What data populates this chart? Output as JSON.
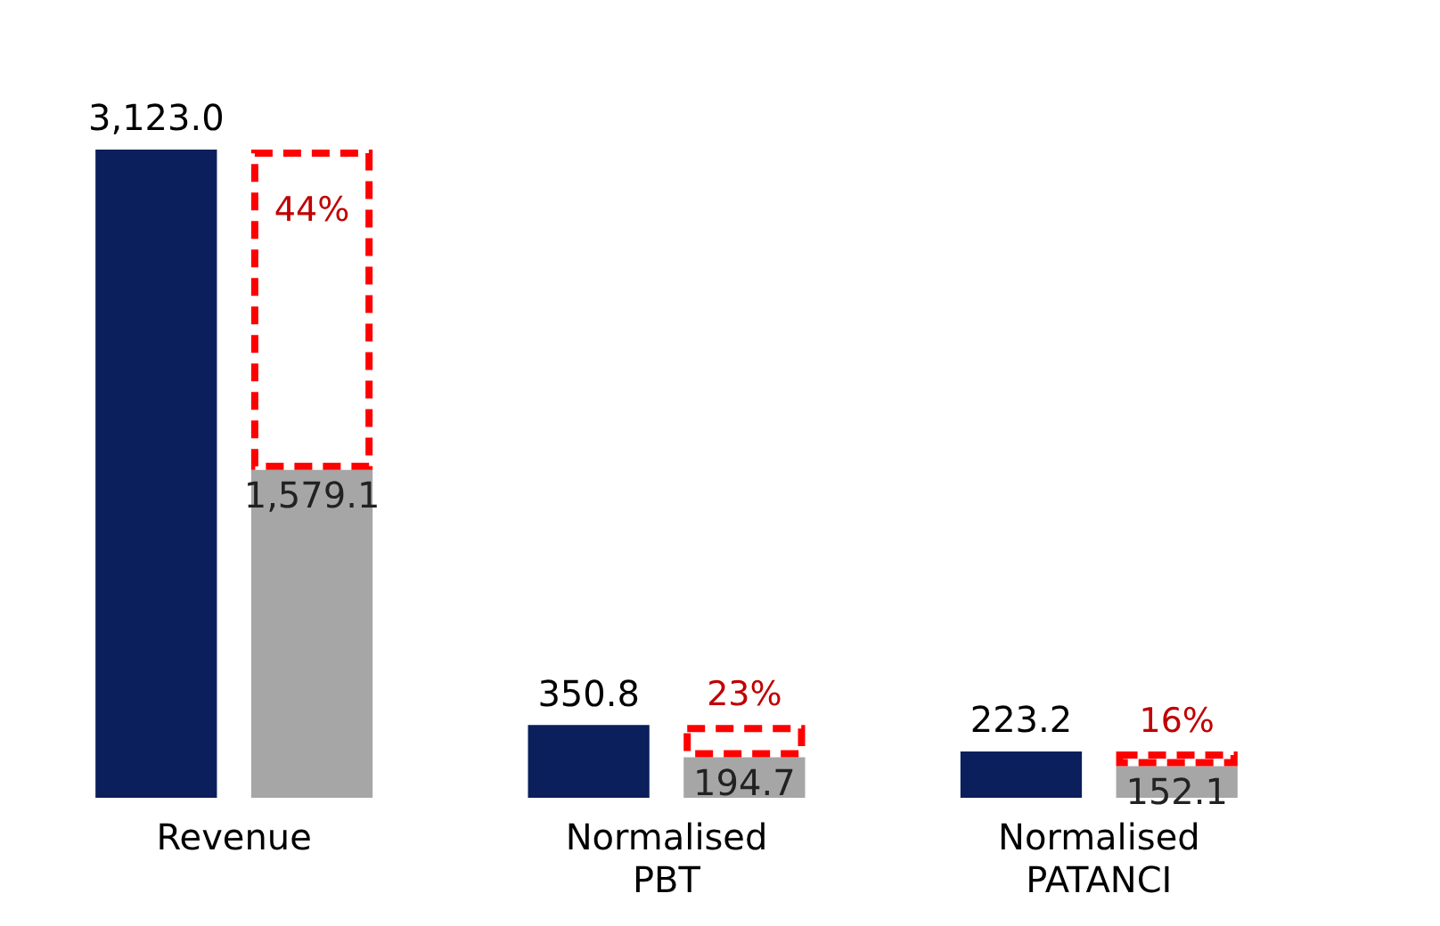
{
  "chart_data": {
    "type": "bar",
    "categories": [
      "Revenue",
      "Normalised PBT",
      "Normalised PATANCI"
    ],
    "series": [
      {
        "color": "#0a1f5c",
        "values": [
          3123.0,
          350.8,
          223.2
        ],
        "value_labels": [
          "3,123.0",
          "350.8",
          "223.2"
        ]
      },
      {
        "color": "#a6a6a6",
        "values": [
          1579.1,
          194.7,
          152.1
        ],
        "value_labels": [
          "1,579.1",
          "194.7",
          "152.1"
        ]
      }
    ],
    "legend": false,
    "grid": false,
    "annotations": [
      "44%",
      "23%",
      "16%"
    ]
  }
}
